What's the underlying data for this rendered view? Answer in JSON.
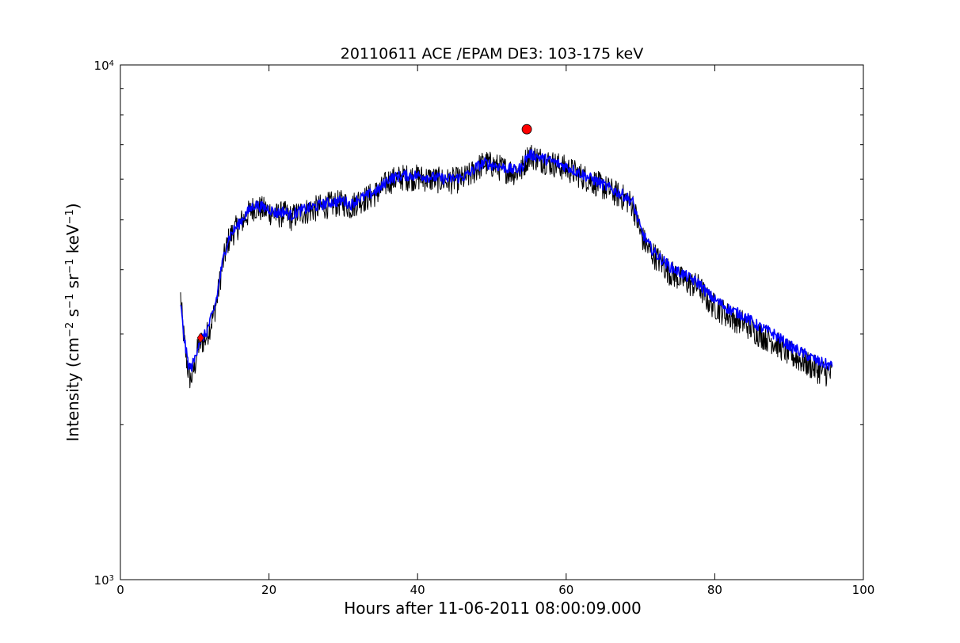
{
  "chart_data": {
    "type": "line",
    "title": "20110611 ACE /EPAM DE3: 103-175 keV",
    "xlabel": "Hours after 11-06-2011 08:00:09.000",
    "ylabel": {
      "prefix": "Intensity (cm",
      "sup1": "−2",
      "mid1": " s",
      "sup2": "−1",
      "mid2": " sr",
      "sup3": "−1",
      "mid3": " keV",
      "sup4": "−1",
      "suffix": ")"
    },
    "xlim": [
      0,
      100
    ],
    "ylim": [
      1000,
      10000
    ],
    "yscale": "log",
    "grid": false,
    "x_ticks": [
      {
        "value": 0,
        "label": "0"
      },
      {
        "value": 20,
        "label": "20"
      },
      {
        "value": 40,
        "label": "40"
      },
      {
        "value": 60,
        "label": "60"
      },
      {
        "value": 80,
        "label": "80"
      },
      {
        "value": 100,
        "label": "100"
      }
    ],
    "y_ticks": [
      {
        "value": 1000,
        "base": "10",
        "exp": "3"
      },
      {
        "value": 10000,
        "base": "10",
        "exp": "4"
      }
    ],
    "y_minor_ticks": [
      2000,
      3000,
      4000,
      5000,
      6000,
      7000,
      8000,
      9000
    ],
    "series": [
      {
        "role": "raw",
        "color": "#000000",
        "noise": 0.06,
        "points": [
          [
            8.1,
            3550
          ],
          [
            8.4,
            3100
          ],
          [
            8.8,
            2750
          ],
          [
            9.2,
            2500
          ],
          [
            9.5,
            2450
          ],
          [
            10,
            2600
          ],
          [
            10.5,
            2850
          ],
          [
            11,
            2900
          ],
          [
            11.5,
            2950
          ],
          [
            12,
            3100
          ],
          [
            12.5,
            3250
          ],
          [
            13,
            3500
          ],
          [
            13.5,
            3900
          ],
          [
            14,
            4250
          ],
          [
            14.5,
            4550
          ],
          [
            15,
            4700
          ],
          [
            16,
            4900
          ],
          [
            17,
            5100
          ],
          [
            18,
            5300
          ],
          [
            19,
            5250
          ],
          [
            20,
            5200
          ],
          [
            21,
            5100
          ],
          [
            22,
            5150
          ],
          [
            23,
            5050
          ],
          [
            24,
            5150
          ],
          [
            25,
            5200
          ],
          [
            26,
            5250
          ],
          [
            28,
            5350
          ],
          [
            30,
            5400
          ],
          [
            31,
            5300
          ],
          [
            32,
            5450
          ],
          [
            33,
            5500
          ],
          [
            34,
            5600
          ],
          [
            35,
            5700
          ],
          [
            36,
            5950
          ],
          [
            38,
            6050
          ],
          [
            40,
            6050
          ],
          [
            42,
            6000
          ],
          [
            44,
            5950
          ],
          [
            46,
            6000
          ],
          [
            47,
            6100
          ],
          [
            48,
            6300
          ],
          [
            49,
            6450
          ],
          [
            50,
            6400
          ],
          [
            52,
            6250
          ],
          [
            53,
            6200
          ],
          [
            54,
            6250
          ],
          [
            54.5,
            6500
          ],
          [
            55,
            6700
          ],
          [
            56,
            6600
          ],
          [
            58,
            6450
          ],
          [
            60,
            6300
          ],
          [
            62,
            6100
          ],
          [
            64,
            5900
          ],
          [
            66,
            5700
          ],
          [
            68,
            5500
          ],
          [
            69,
            5350
          ],
          [
            70,
            4700
          ],
          [
            71,
            4400
          ],
          [
            72,
            4250
          ],
          [
            74,
            3950
          ],
          [
            76,
            3800
          ],
          [
            78,
            3700
          ],
          [
            79,
            3500
          ],
          [
            80,
            3400
          ],
          [
            82,
            3250
          ],
          [
            84,
            3150
          ],
          [
            86,
            3000
          ],
          [
            88,
            2900
          ],
          [
            90,
            2750
          ],
          [
            92,
            2650
          ],
          [
            94,
            2550
          ],
          [
            95.8,
            2500
          ]
        ]
      },
      {
        "role": "smoothed",
        "color": "#0000ff",
        "noise": 0.025,
        "points": [
          [
            8.1,
            3450
          ],
          [
            8.4,
            3100
          ],
          [
            8.8,
            2800
          ],
          [
            9.2,
            2600
          ],
          [
            9.5,
            2580
          ],
          [
            10,
            2680
          ],
          [
            10.5,
            2880
          ],
          [
            11,
            2950
          ],
          [
            11.5,
            3000
          ],
          [
            12,
            3150
          ],
          [
            12.5,
            3300
          ],
          [
            13,
            3550
          ],
          [
            13.5,
            3950
          ],
          [
            14,
            4300
          ],
          [
            14.5,
            4580
          ],
          [
            15,
            4720
          ],
          [
            16,
            4920
          ],
          [
            17,
            5150
          ],
          [
            18,
            5350
          ],
          [
            19,
            5300
          ],
          [
            20,
            5250
          ],
          [
            21,
            5150
          ],
          [
            22,
            5200
          ],
          [
            23,
            5100
          ],
          [
            24,
            5200
          ],
          [
            25,
            5250
          ],
          [
            26,
            5300
          ],
          [
            28,
            5400
          ],
          [
            30,
            5450
          ],
          [
            31,
            5350
          ],
          [
            32,
            5500
          ],
          [
            33,
            5550
          ],
          [
            34,
            5650
          ],
          [
            35,
            5750
          ],
          [
            36,
            6000
          ],
          [
            38,
            6100
          ],
          [
            40,
            6100
          ],
          [
            42,
            6050
          ],
          [
            44,
            6000
          ],
          [
            46,
            6050
          ],
          [
            47,
            6150
          ],
          [
            48,
            6350
          ],
          [
            49,
            6450
          ],
          [
            50,
            6400
          ],
          [
            52,
            6300
          ],
          [
            53,
            6250
          ],
          [
            54,
            6300
          ],
          [
            54.5,
            6550
          ],
          [
            55,
            6700
          ],
          [
            56,
            6650
          ],
          [
            58,
            6500
          ],
          [
            60,
            6350
          ],
          [
            62,
            6150
          ],
          [
            64,
            5950
          ],
          [
            66,
            5750
          ],
          [
            68,
            5550
          ],
          [
            69,
            5400
          ],
          [
            70,
            4800
          ],
          [
            71,
            4500
          ],
          [
            72,
            4300
          ],
          [
            74,
            4050
          ],
          [
            76,
            3900
          ],
          [
            78,
            3750
          ],
          [
            79,
            3600
          ],
          [
            80,
            3500
          ],
          [
            82,
            3350
          ],
          [
            84,
            3250
          ],
          [
            86,
            3100
          ],
          [
            88,
            3000
          ],
          [
            90,
            2850
          ],
          [
            92,
            2750
          ],
          [
            94,
            2650
          ],
          [
            95.8,
            2600
          ]
        ]
      }
    ],
    "markers": [
      {
        "shape": "diamond",
        "x": 10.8,
        "y": 2950,
        "color": "#ff0000"
      },
      {
        "shape": "circle",
        "x": 54.7,
        "y": 7500,
        "color": "#ff0000"
      }
    ]
  }
}
